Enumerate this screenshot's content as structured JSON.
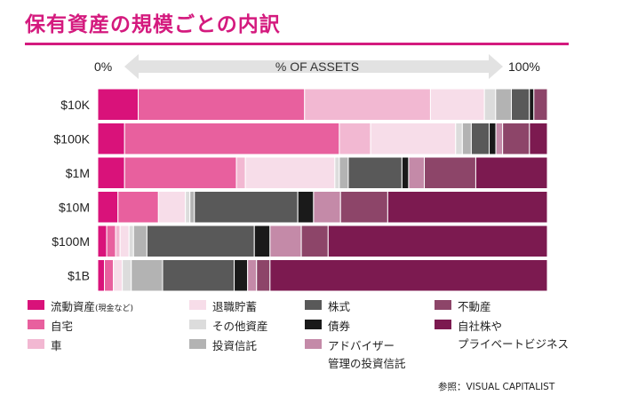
{
  "title": "保有資産の規模ごとの内訳",
  "source": "参照：VISUAL CAPITALIST",
  "chart_data": {
    "type": "stacked-bar-100",
    "title": "保有資産の規模ごとの内訳",
    "axis_label": "% OF ASSETS",
    "axis_min_label": "0%",
    "axis_max_label": "100%",
    "xlim": [
      0,
      100
    ],
    "categories": [
      "$10K",
      "$100K",
      "$1M",
      "$10M",
      "$100M",
      "$1B"
    ],
    "series": [
      {
        "name": "流動資産",
        "note": "(現金など)",
        "color": "#d9127a",
        "values": [
          9,
          6,
          6,
          4.5,
          2,
          1.5
        ]
      },
      {
        "name": "自宅",
        "color": "#e8609e",
        "values": [
          37,
          48,
          25,
          9,
          2,
          2
        ]
      },
      {
        "name": "車",
        "color": "#f2b8d2",
        "values": [
          28,
          7,
          2,
          0,
          1,
          0
        ]
      },
      {
        "name": "退職貯蓄",
        "color": "#f7dde9",
        "values": [
          12,
          19,
          20,
          6,
          2,
          2
        ]
      },
      {
        "name": "その他資産",
        "color": "#dcdcdc",
        "values": [
          2.5,
          1.5,
          1,
          1,
          1,
          2
        ]
      },
      {
        "name": "投資信託",
        "color": "#b3b3b3",
        "values": [
          3.5,
          2,
          2,
          1,
          3,
          7
        ]
      },
      {
        "name": "株式",
        "color": "#595959",
        "values": [
          4,
          4,
          12,
          23,
          24,
          16
        ]
      },
      {
        "name": "債券",
        "color": "#1a1a1a",
        "values": [
          1,
          1.5,
          1.5,
          3.5,
          3.5,
          3
        ]
      },
      {
        "name": "アドバイザー管理の投資信託",
        "color": "#c48aa8",
        "values": [
          0,
          1.5,
          3.5,
          6,
          7,
          2
        ]
      },
      {
        "name": "不動産",
        "color": "#8d4569",
        "values": [
          3,
          6,
          11.5,
          10.5,
          6,
          3
        ]
      },
      {
        "name": "自社株やプライベートビジネス",
        "color": "#7c1a50",
        "values": [
          0,
          4,
          16,
          35.5,
          49,
          62
        ]
      }
    ]
  },
  "legend": [
    {
      "label": "流動資産",
      "note": "(現金など)"
    },
    {
      "label": "自宅"
    },
    {
      "label": "車"
    },
    {
      "label": "退職貯蓄"
    },
    {
      "label": "その他資産"
    },
    {
      "label": "投資信託"
    },
    {
      "label": "株式"
    },
    {
      "label": "債券"
    },
    {
      "label": "アドバイザー",
      "label2": "管理の投資信託"
    },
    {
      "label": "不動産"
    },
    {
      "label": "自社株や",
      "label2": "プライベートビジネス"
    }
  ]
}
